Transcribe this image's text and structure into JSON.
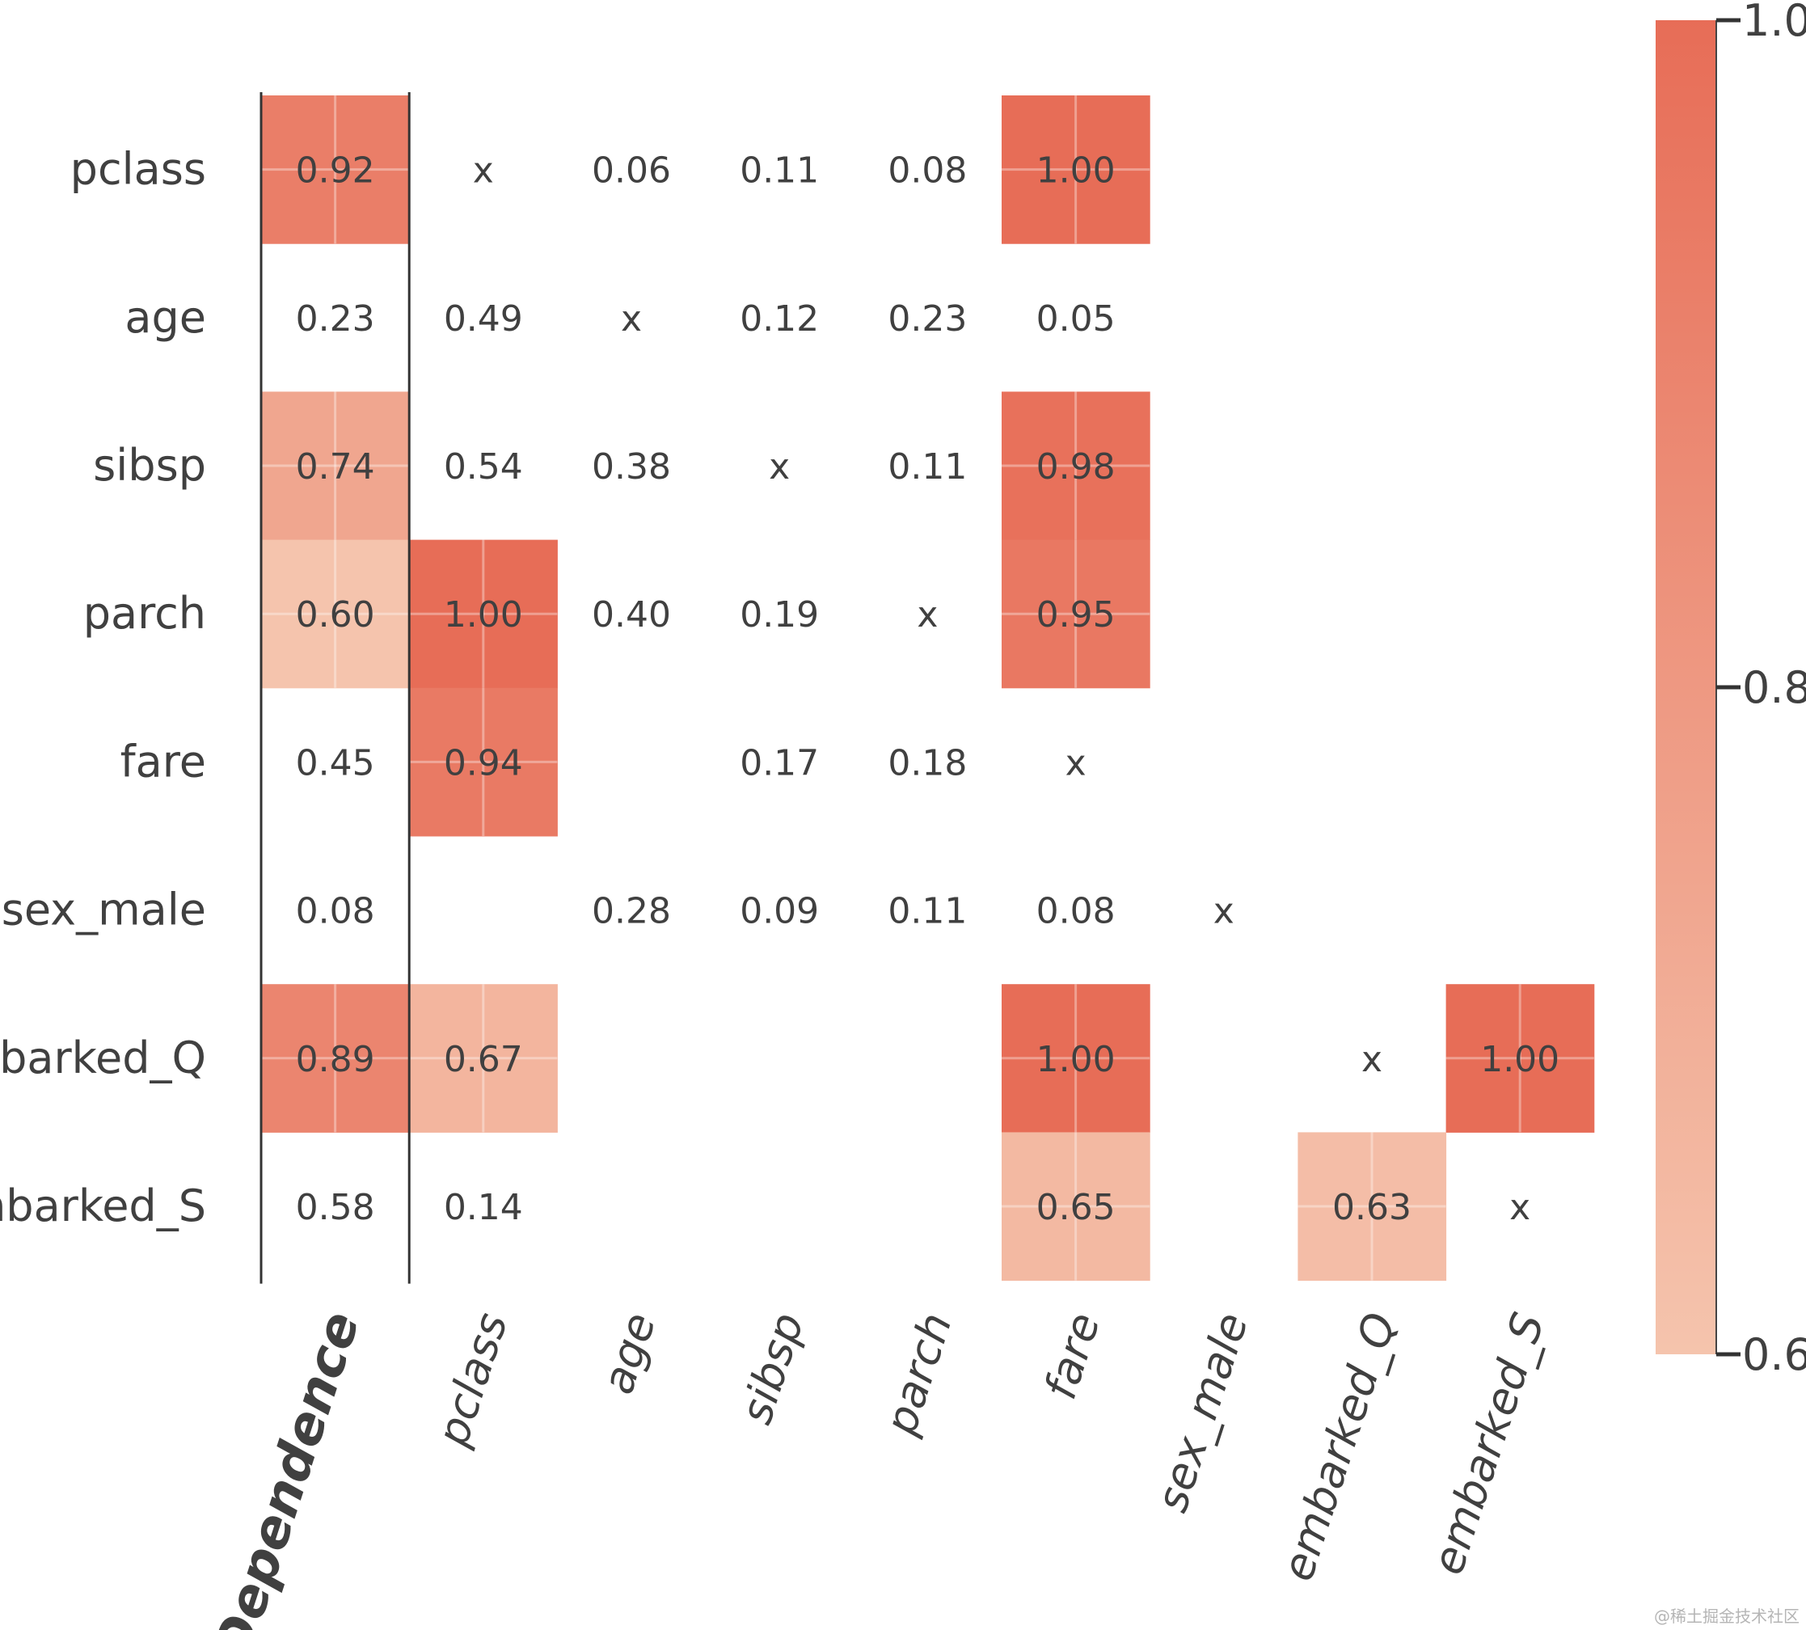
{
  "chart_data": {
    "type": "heatmap",
    "title": "",
    "rows": [
      "pclass",
      "age",
      "sibsp",
      "parch",
      "fare",
      "sex_male",
      "embarked_Q",
      "embarked_S"
    ],
    "columns": [
      "Dependence",
      "pclass",
      "age",
      "sibsp",
      "parch",
      "fare",
      "sex_male",
      "embarked_Q",
      "embarked_S"
    ],
    "cells": [
      [
        "0.92",
        "x",
        "0.06",
        "0.11",
        "0.08",
        "1.00",
        "",
        "",
        ""
      ],
      [
        "0.23",
        "0.49",
        "x",
        "0.12",
        "0.23",
        "0.05",
        "",
        "",
        ""
      ],
      [
        "0.74",
        "0.54",
        "0.38",
        "x",
        "0.11",
        "0.98",
        "",
        "",
        ""
      ],
      [
        "0.60",
        "1.00",
        "0.40",
        "0.19",
        "x",
        "0.95",
        "",
        "",
        ""
      ],
      [
        "0.45",
        "0.94",
        "",
        "0.17",
        "0.18",
        "x",
        "",
        "",
        ""
      ],
      [
        "0.08",
        "",
        "0.28",
        "0.09",
        "0.11",
        "0.08",
        "x",
        "",
        ""
      ],
      [
        "0.89",
        "0.67",
        "",
        "",
        "",
        "1.00",
        "",
        "x",
        "1.00"
      ],
      [
        "0.58",
        "0.14",
        "",
        "",
        "",
        "0.65",
        "",
        "0.63",
        "x"
      ]
    ],
    "color_threshold": 0.6,
    "colorbar": {
      "range": [
        0.6,
        1.0
      ],
      "ticks": [
        "1.0",
        "0.8",
        "0.6"
      ],
      "color_low": "#f5c4ad",
      "color_high": "#e76d57"
    },
    "bold_column": "Dependence",
    "separator_after_column": "Dependence"
  },
  "watermark": "@稀土掘金技术社区"
}
